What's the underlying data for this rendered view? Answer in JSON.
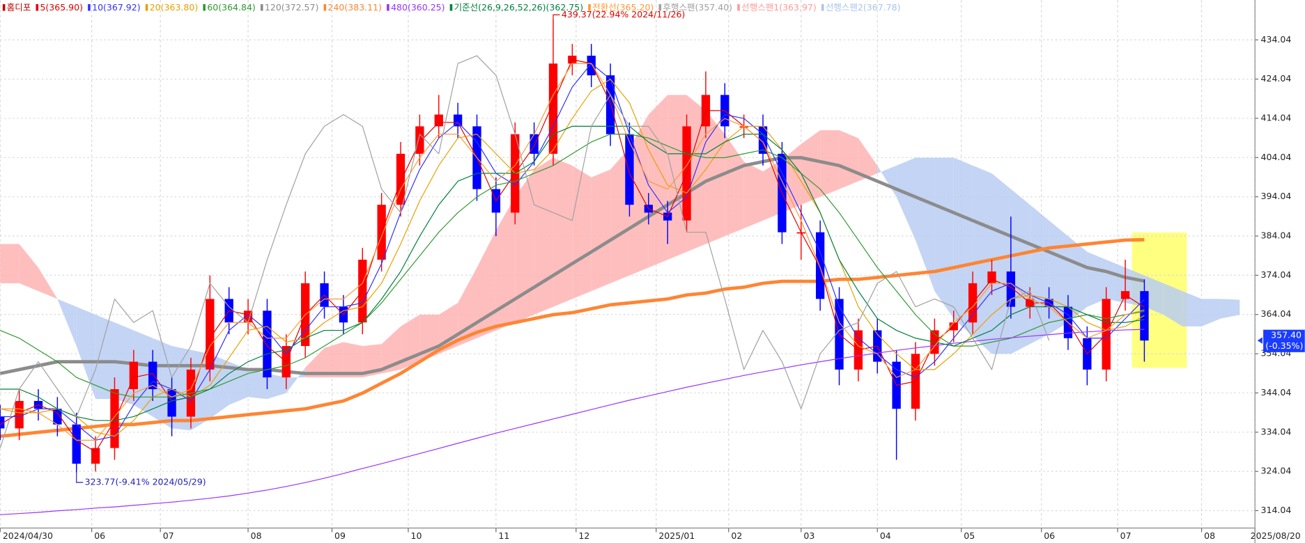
{
  "chart_data": {
    "type": "candlestick",
    "name": "홈디포",
    "color": "#c00000",
    "up_color": "#ff0000",
    "down_color": "#0000ff",
    "x": [
      0,
      5,
      10,
      15,
      20,
      25,
      30,
      35,
      40,
      45,
      50,
      55,
      60,
      65,
      70,
      75,
      80,
      85,
      90,
      95,
      100,
      105,
      110,
      115,
      120,
      125,
      130,
      135,
      140,
      145,
      150,
      155,
      160,
      165,
      170,
      175,
      180,
      185,
      190,
      195,
      200,
      205,
      210,
      215,
      220,
      225,
      230,
      235,
      240,
      245,
      250,
      255,
      260,
      265,
      270,
      275,
      280,
      285,
      290,
      295,
      300,
      305,
      310,
      315,
      320,
      325
    ],
    "open": [
      338,
      335,
      342,
      340,
      336,
      326,
      330,
      345,
      352,
      345,
      338,
      350,
      368,
      362,
      365,
      348,
      356,
      372,
      366,
      362,
      378,
      392,
      405,
      412,
      415,
      412,
      396,
      390,
      410,
      405,
      428,
      430,
      425,
      410,
      392,
      390,
      388,
      412,
      420,
      412,
      412,
      405,
      385,
      385,
      368,
      350,
      360,
      352,
      340,
      354,
      360,
      362,
      372,
      375,
      366,
      368,
      366,
      358,
      350,
      368,
      370,
      null,
      null,
      null,
      null,
      null
    ],
    "high": [
      341,
      345,
      345,
      343,
      339,
      333,
      348,
      355,
      355,
      348,
      353,
      374,
      371,
      368,
      368,
      359,
      375,
      375,
      369,
      381,
      395,
      408,
      415,
      420,
      418,
      415,
      399,
      413,
      413,
      439.37,
      433,
      433,
      428,
      413,
      395,
      393,
      415,
      426,
      423,
      415,
      415,
      408,
      392,
      388,
      371,
      363,
      363,
      355,
      357,
      363,
      365,
      375,
      378,
      389,
      371,
      371,
      369,
      361,
      371,
      378,
      373,
      null,
      null,
      null,
      null,
      null
    ],
    "low": [
      332,
      332,
      337,
      333,
      323.77,
      324,
      327,
      342,
      342,
      333,
      335,
      347,
      359,
      359,
      345,
      345,
      353,
      363,
      359,
      359,
      375,
      389,
      402,
      409,
      409,
      393,
      384,
      387,
      402,
      402,
      425,
      422,
      407,
      389,
      387,
      382,
      385,
      409,
      409,
      409,
      402,
      382,
      378,
      365,
      346,
      347,
      349,
      327,
      337,
      351,
      357,
      359,
      369,
      363,
      363,
      363,
      355,
      346,
      347,
      365,
      352,
      null,
      null,
      null,
      null,
      null
    ],
    "close": [
      335,
      342,
      340,
      336,
      326,
      330,
      345,
      352,
      345,
      338,
      350,
      368,
      362,
      365,
      348,
      356,
      372,
      366,
      362,
      378,
      392,
      405,
      412,
      415,
      412,
      396,
      390,
      410,
      405,
      428,
      430,
      425,
      410,
      392,
      390,
      388,
      412,
      420,
      412,
      412,
      405,
      385,
      385,
      368,
      350,
      360,
      352,
      340,
      354,
      360,
      362,
      372,
      375,
      366,
      368,
      366,
      358,
      350,
      368,
      370,
      357.4,
      null,
      null,
      null,
      null,
      null
    ],
    "series": [
      {
        "name": "5(365.90)",
        "color": "#e00000",
        "line": "thin",
        "values": [
          336,
          339,
          341,
          339,
          332,
          329,
          337,
          348,
          349,
          342,
          343,
          358,
          365,
          364,
          356,
          352,
          364,
          369,
          364,
          370,
          385,
          398,
          408,
          413,
          413,
          404,
          393,
          400,
          407,
          418,
          429,
          428,
          418,
          400,
          391,
          389,
          400,
          416,
          416,
          412,
          408,
          395,
          385,
          376,
          359,
          355,
          356,
          346,
          347,
          357,
          361,
          367,
          373,
          371,
          367,
          367,
          362,
          354,
          359,
          369,
          365.9,
          null,
          null,
          null,
          null,
          null
        ]
      },
      {
        "name": "10(367.92)",
        "color": "#3030ff",
        "line": "thin",
        "values": [
          338,
          338,
          340,
          340,
          336,
          332,
          333,
          341,
          347,
          345,
          342,
          350,
          360,
          364,
          360,
          354,
          360,
          366,
          366,
          367,
          377,
          390,
          401,
          409,
          413,
          408,
          400,
          397,
          403,
          412,
          422,
          428,
          424,
          410,
          397,
          390,
          394,
          408,
          415,
          414,
          410,
          400,
          390,
          380,
          366,
          358,
          354,
          350,
          348,
          352,
          358,
          364,
          370,
          372,
          369,
          367,
          364,
          358,
          358,
          363,
          367.92,
          null,
          null,
          null,
          null,
          null
        ]
      },
      {
        "name": "20(363.80)",
        "color": "#e8a000",
        "line": "thin",
        "values": [
          340,
          339,
          339,
          340,
          338,
          334,
          333,
          337,
          343,
          345,
          343,
          346,
          353,
          360,
          361,
          357,
          358,
          362,
          365,
          366,
          372,
          382,
          393,
          402,
          409,
          410,
          405,
          400,
          401,
          406,
          414,
          421,
          424,
          418,
          406,
          397,
          395,
          401,
          408,
          412,
          412,
          406,
          398,
          390,
          378,
          366,
          359,
          354,
          350,
          350,
          354,
          359,
          364,
          368,
          369,
          368,
          366,
          362,
          360,
          361,
          363.8,
          null,
          null,
          null,
          null,
          null
        ]
      },
      {
        "name": "60(364.84)",
        "color": "#2e9a2e",
        "line": "thin",
        "values": [
          360,
          358,
          355,
          352,
          348,
          346,
          344,
          343,
          343,
          343,
          344,
          345,
          347,
          349,
          350,
          351,
          353,
          356,
          359,
          362,
          367,
          373,
          379,
          385,
          390,
          394,
          397,
          398,
          400,
          402,
          405,
          408,
          410,
          410,
          409,
          407,
          405,
          404,
          404,
          405,
          406,
          404,
          400,
          396,
          390,
          383,
          376,
          370,
          364,
          359,
          356,
          356,
          357,
          358,
          360,
          362,
          363,
          364,
          363,
          364,
          364.84,
          null,
          null,
          null,
          null,
          null
        ]
      },
      {
        "name": "120(372.57)",
        "color": "#8c8c8c",
        "line": "thick",
        "values": [
          349,
          350,
          351,
          352,
          352,
          352,
          352,
          351.5,
          351,
          351,
          351,
          351,
          350.5,
          350,
          350,
          349.5,
          349,
          349,
          349,
          349,
          350,
          352,
          354,
          356,
          359,
          362,
          365,
          368,
          371,
          374,
          377,
          380,
          383,
          386,
          389,
          392,
          395,
          398,
          400,
          402,
          403,
          404,
          404,
          403,
          402,
          400,
          398,
          396,
          394,
          392,
          390,
          388,
          386,
          384,
          382,
          380,
          378,
          376,
          375,
          373.5,
          372.57,
          null,
          null,
          null,
          null,
          null
        ]
      },
      {
        "name": "240(383.11)",
        "color": "#ff8533",
        "line": "thick",
        "values": [
          333,
          333.5,
          334,
          334.5,
          335,
          335.5,
          336,
          336,
          336.5,
          337,
          337,
          337.5,
          338,
          338.5,
          339,
          339.5,
          340,
          341,
          342,
          344,
          346.5,
          349,
          352,
          355,
          357.5,
          359.5,
          361,
          362,
          363,
          364,
          364.5,
          365.5,
          366.5,
          367,
          367.5,
          368,
          369,
          369.5,
          370.5,
          371,
          372,
          372.5,
          372.5,
          372.5,
          373,
          373,
          373.5,
          374,
          374.5,
          375,
          376,
          377,
          378,
          379,
          380,
          381,
          381.5,
          382,
          382.5,
          383,
          383.11,
          null,
          null,
          null,
          null,
          null
        ]
      },
      {
        "name": "480(360.25)",
        "color": "#9933ff",
        "line": "thin",
        "values": [
          313,
          313.3,
          313.6,
          314,
          314.3,
          314.7,
          315,
          315.4,
          315.8,
          316.2,
          316.7,
          317.2,
          317.8,
          318.5,
          319.3,
          320.2,
          321.2,
          322.3,
          323.5,
          324.8,
          326,
          327.3,
          328.6,
          329.9,
          331.2,
          332.5,
          333.8,
          335,
          336.2,
          337.4,
          338.6,
          339.8,
          341,
          342.2,
          343.3,
          344.4,
          345.5,
          346.5,
          347.5,
          348.5,
          349.4,
          350.3,
          351.2,
          352,
          352.8,
          353.5,
          354.2,
          354.9,
          355.5,
          356.1,
          356.7,
          357.2,
          357.7,
          358.1,
          358.5,
          358.9,
          359.3,
          359.6,
          359.9,
          360.1,
          360.25,
          null,
          null,
          null,
          null,
          null
        ]
      },
      {
        "name": "기준선(26,9,26,52,26)(362.75)",
        "color": "#008040",
        "line": "thin",
        "values": [
          345,
          345,
          343,
          340,
          338,
          337,
          337,
          338,
          340,
          342,
          343,
          345,
          349,
          352,
          354,
          355,
          358,
          360,
          360,
          362,
          368,
          375,
          384,
          392,
          398,
          400,
          400,
          400,
          403,
          410,
          412,
          412,
          412,
          412,
          408,
          405,
          405,
          405,
          408,
          410,
          410,
          406,
          400,
          390,
          378,
          370,
          363,
          360,
          358,
          357,
          356,
          358,
          360,
          364,
          366,
          366,
          366,
          364,
          362,
          362,
          362.75,
          null,
          null,
          null,
          null,
          null
        ]
      },
      {
        "name": "전환선(365.20)",
        "color": "#ff9933",
        "line": "thin",
        "values": [
          340,
          340,
          339,
          336,
          332,
          332,
          338,
          344,
          346,
          343,
          345,
          356,
          362,
          362,
          358,
          358,
          364,
          368,
          368,
          372,
          384,
          396,
          404,
          410,
          410,
          404,
          398,
          402,
          410,
          420,
          428,
          428,
          420,
          408,
          398,
          396,
          402,
          410,
          414,
          412,
          408,
          398,
          388,
          376,
          362,
          356,
          354,
          348,
          350,
          356,
          362,
          366,
          372,
          372,
          368,
          366,
          362,
          358,
          360,
          364,
          365.2,
          null,
          null,
          null,
          null,
          null
        ]
      },
      {
        "name": "후행스팬(357.40)",
        "color": "#a0a0a0",
        "line": "thin",
        "values": [
          330,
          345,
          352,
          345,
          338,
          350,
          368,
          362,
          365,
          348,
          356,
          372,
          366,
          362,
          378,
          392,
          405,
          412,
          415,
          412,
          396,
          390,
          410,
          405,
          428,
          430,
          425,
          410,
          392,
          390,
          388,
          412,
          420,
          412,
          412,
          405,
          385,
          385,
          368,
          350,
          360,
          352,
          340,
          354,
          360,
          362,
          372,
          375,
          366,
          368,
          366,
          358,
          350,
          368,
          370,
          357.4,
          null,
          null,
          null,
          null,
          null,
          null,
          null,
          null,
          null,
          null
        ]
      },
      {
        "name": "선행스팬1(363.97)",
        "color": "#ff9a9a",
        "kind": "span1",
        "values": [
          382,
          382,
          376,
          368,
          356,
          342.5,
          342.5,
          341,
          338,
          335,
          334.5,
          337.5,
          341,
          343,
          342.5,
          344,
          350.5,
          355.5,
          357,
          356,
          356.5,
          361,
          364,
          364,
          367,
          376,
          385.5,
          394,
          401,
          404,
          402,
          399,
          401,
          406.5,
          415,
          420,
          420,
          416,
          410,
          403,
          400.5,
          403.5,
          407.5,
          411,
          411,
          409,
          402,
          394,
          383,
          370,
          363,
          358.5,
          354,
          354,
          356.5,
          359,
          362,
          366,
          368,
          367,
          366,
          364,
          361,
          361,
          363,
          363.97
        ]
      },
      {
        "name": "선행스팬2(367.78)",
        "color": "#a8c4f0",
        "kind": "span2",
        "values": [
          372,
          372,
          370,
          368,
          366,
          364,
          362,
          360,
          358,
          356,
          355,
          354,
          352,
          350,
          349,
          348,
          348,
          348,
          348,
          348,
          349,
          350,
          352,
          354,
          356,
          358,
          360,
          362,
          364,
          366,
          368,
          370,
          372,
          374,
          376,
          378,
          380,
          382,
          384,
          386,
          388,
          390,
          392,
          394,
          396,
          398,
          400,
          402,
          404,
          404,
          404,
          402,
          400,
          396,
          392,
          388,
          384,
          380,
          378,
          376,
          374,
          372,
          370,
          368,
          368,
          367.78
        ]
      }
    ],
    "cloud": {
      "up_color": "#ffb3b3",
      "down_color": "#b8cdf2"
    },
    "xlim": [
      0,
      329
    ],
    "xticks": [
      {
        "value": 0,
        "label": "2024/04/30"
      },
      {
        "value": 24,
        "label": "06"
      },
      {
        "value": 42,
        "label": "07"
      },
      {
        "value": 65,
        "label": "08"
      },
      {
        "value": 87,
        "label": "09"
      },
      {
        "value": 107,
        "label": "10"
      },
      {
        "value": 130,
        "label": "11"
      },
      {
        "value": 151,
        "label": "12"
      },
      {
        "value": 172,
        "label": "2025/01"
      },
      {
        "value": 191,
        "label": "02"
      },
      {
        "value": 210,
        "label": "03"
      },
      {
        "value": 230,
        "label": "04"
      },
      {
        "value": 252,
        "label": "05"
      },
      {
        "value": 273,
        "label": "06"
      },
      {
        "value": 293,
        "label": "07"
      },
      {
        "value": 315,
        "label": "08"
      },
      {
        "value": 329,
        "label": "2025/08/20"
      }
    ],
    "ylim": [
      309.6,
      444.2
    ],
    "yticks": [
      314.04,
      324.04,
      334.04,
      344.04,
      354.04,
      364.04,
      374.04,
      384.04,
      394.04,
      404.04,
      414.04,
      424.04,
      434.04
    ],
    "grid": true,
    "last_price": {
      "value": 357.4,
      "label": "357.40"
    },
    "last_change": "(-0.35%)",
    "annotations": [
      {
        "text": "439.37(22.94% 2024/11/26)",
        "x": 145,
        "y": 439.37,
        "position": "above",
        "color": "#e00000"
      },
      {
        "text": "323.77(-9.41% 2024/05/29)",
        "x": 20,
        "y": 323.77,
        "position": "below",
        "color": "#2020c0"
      }
    ]
  }
}
